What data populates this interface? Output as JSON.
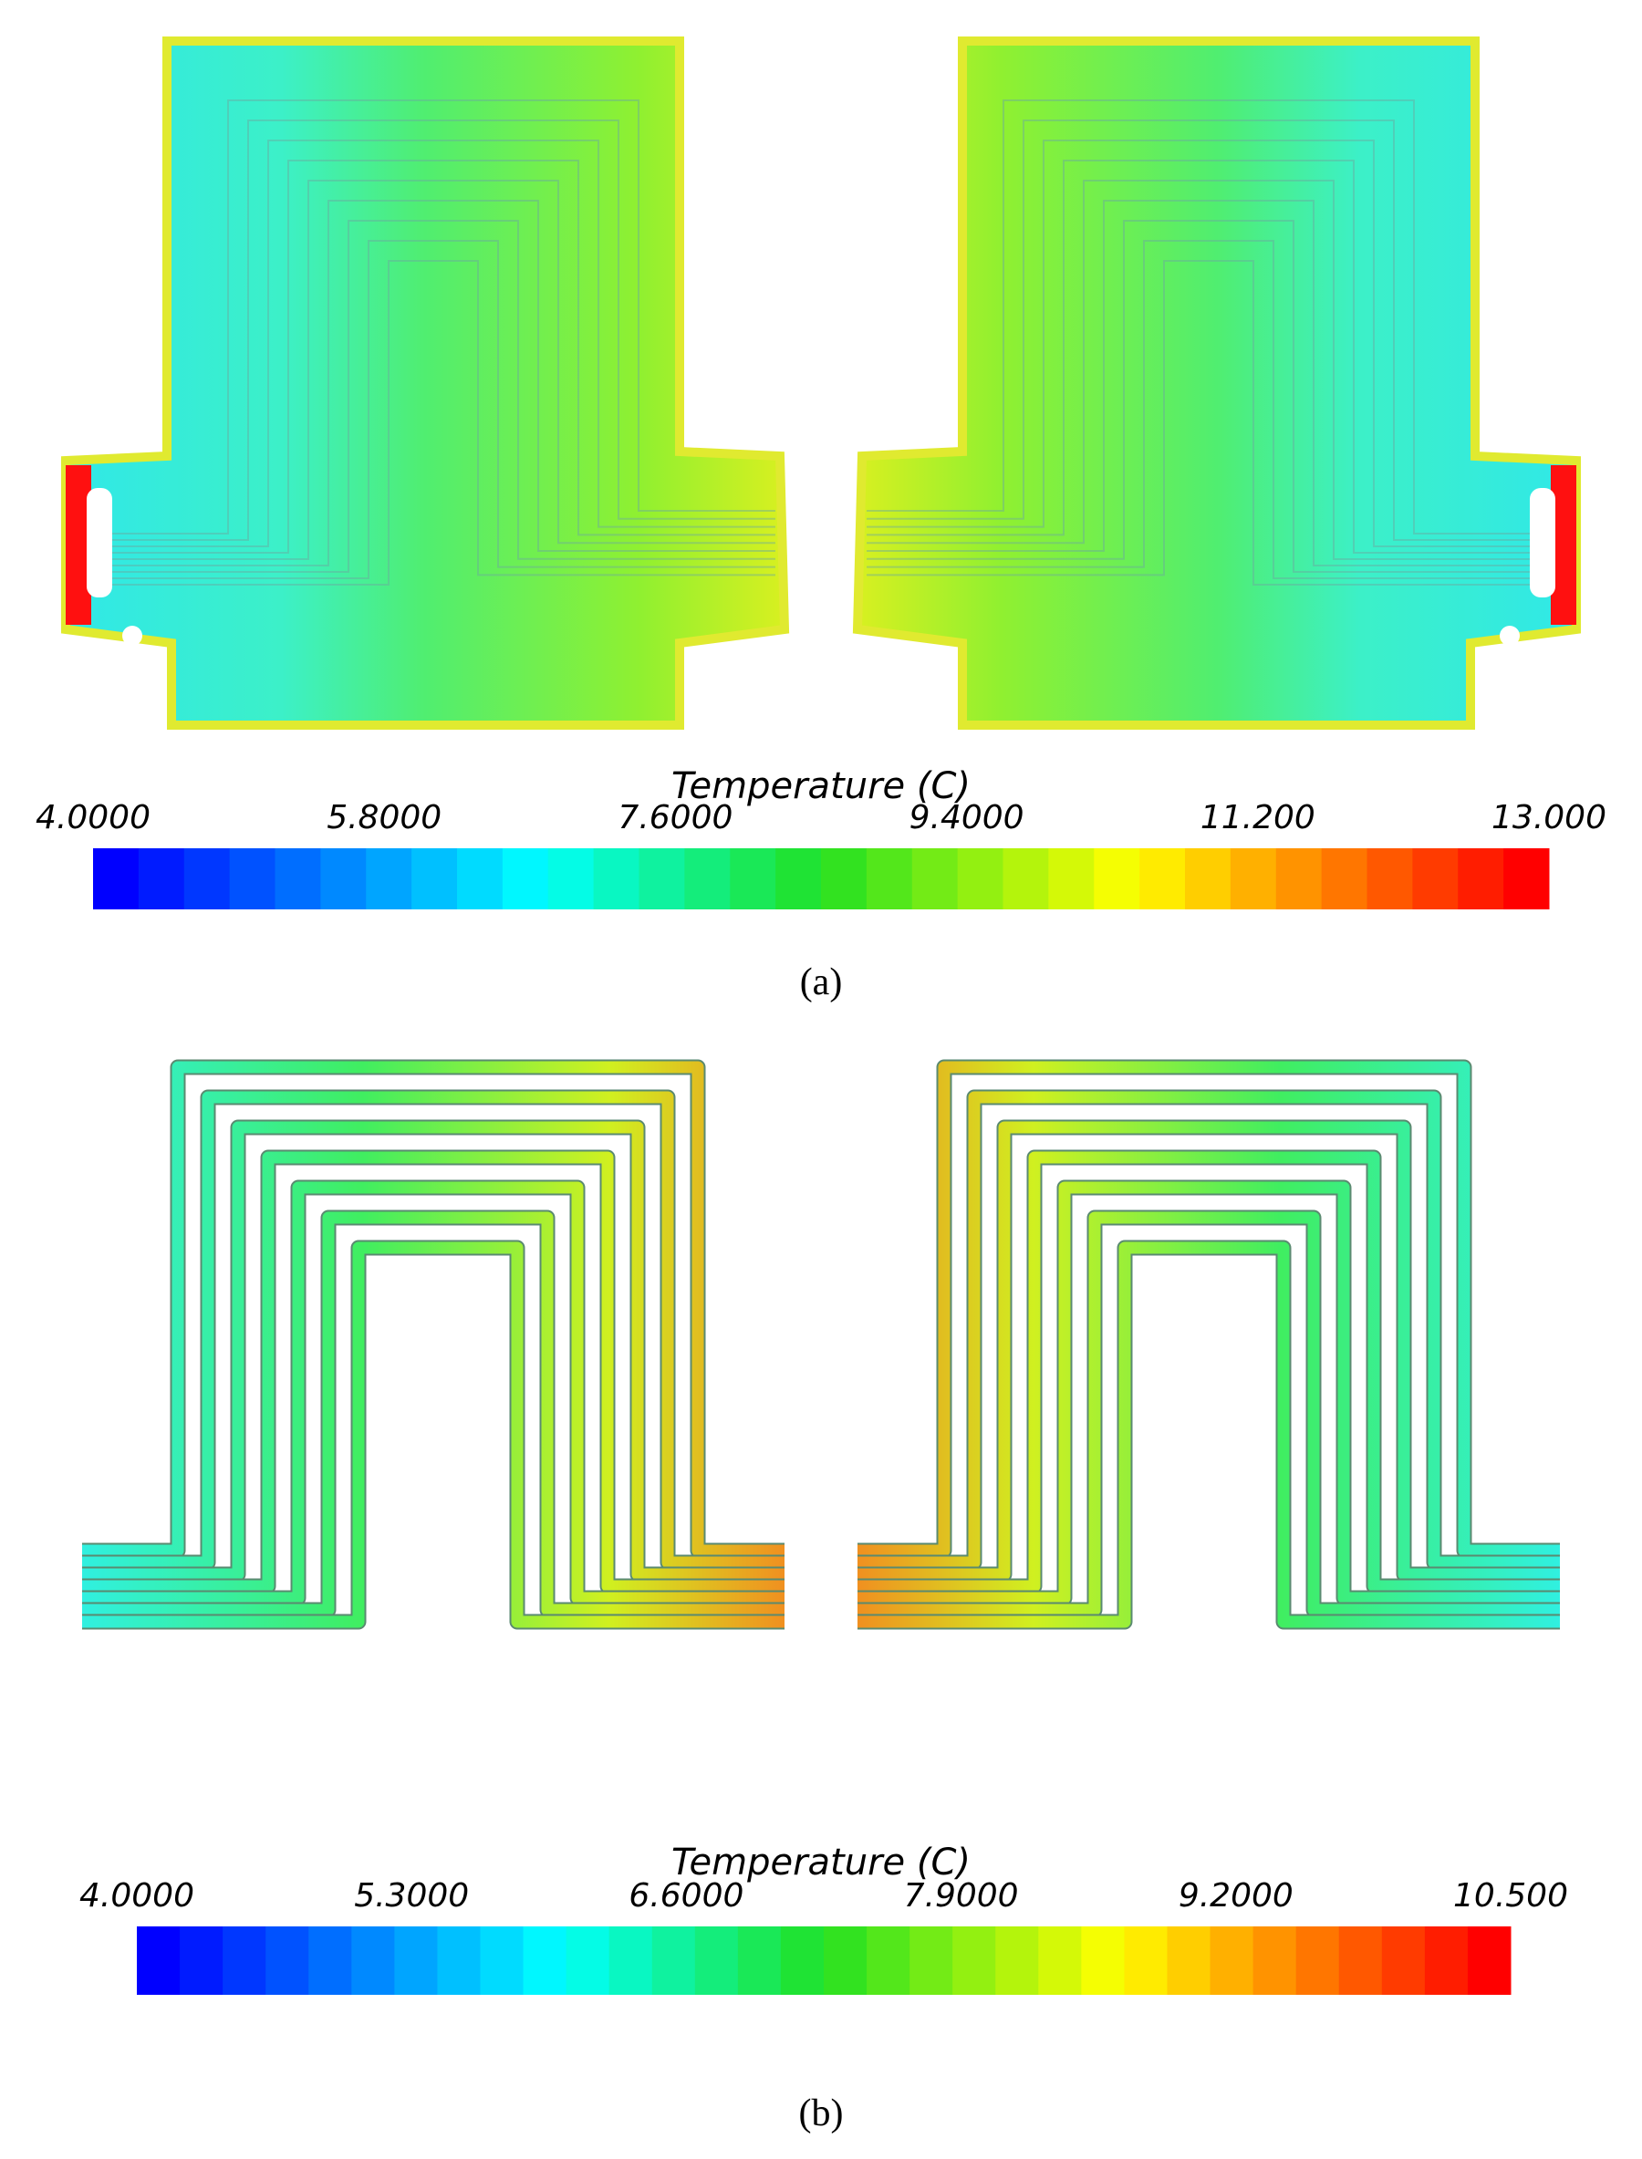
{
  "panels": [
    {
      "colorbar": {
        "title": "Temperature (C)",
        "ticks": [
          {
            "value": 4,
            "label": "4.0000"
          },
          {
            "value": 5.8,
            "label": "5.8000"
          },
          {
            "value": 7.6,
            "label": "7.6000"
          },
          {
            "value": 9.4,
            "label": "9.4000"
          },
          {
            "value": 11.2,
            "label": "11.200"
          },
          {
            "value": 13,
            "label": "13.000"
          }
        ]
      },
      "caption": "(a)"
    },
    {
      "colorbar": {
        "title": "Temperature (C)",
        "ticks": [
          {
            "value": 4,
            "label": "4.0000"
          },
          {
            "value": 5.3,
            "label": "5.3000"
          },
          {
            "value": 6.6,
            "label": "6.6000"
          },
          {
            "value": 7.9,
            "label": "7.9000"
          },
          {
            "value": 9.2,
            "label": "9.2000"
          },
          {
            "value": 10.5,
            "label": "10.500"
          }
        ]
      },
      "caption": "(b)"
    }
  ]
}
